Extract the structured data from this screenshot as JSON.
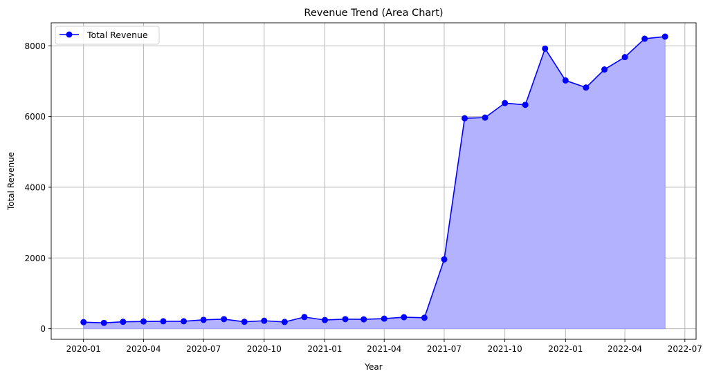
{
  "chart_data": {
    "type": "area",
    "title": "Revenue Trend (Area Chart)",
    "xlabel": "Year",
    "ylabel": "Total Revenue",
    "legend": {
      "placement": "top-left",
      "entries": [
        "Total Revenue"
      ]
    },
    "grid": true,
    "ylim": [
      -300,
      8650
    ],
    "xlim": [
      "2019-11-13",
      "2022-07-18"
    ],
    "x_ticks": [
      "2020-01",
      "2020-04",
      "2020-07",
      "2020-10",
      "2021-01",
      "2021-04",
      "2021-07",
      "2021-10",
      "2022-01",
      "2022-04",
      "2022-07"
    ],
    "y_ticks": [
      0,
      2000,
      4000,
      6000,
      8000
    ],
    "colors": {
      "line": "#0000ff",
      "fill": "#b2b2ff",
      "fill_edge": "#9a9af0",
      "grid": "#b0b0b0"
    },
    "series": [
      {
        "name": "Total Revenue",
        "x": [
          "2020-01-01",
          "2020-02-01",
          "2020-03-01",
          "2020-04-01",
          "2020-05-01",
          "2020-06-01",
          "2020-07-01",
          "2020-08-01",
          "2020-09-01",
          "2020-10-01",
          "2020-11-01",
          "2020-12-01",
          "2021-01-01",
          "2021-02-01",
          "2021-03-01",
          "2021-04-01",
          "2021-05-01",
          "2021-06-01",
          "2021-07-01",
          "2021-08-01",
          "2021-09-01",
          "2021-10-01",
          "2021-11-01",
          "2021-12-01",
          "2022-01-01",
          "2022-02-01",
          "2022-03-01",
          "2022-04-01",
          "2022-05-01",
          "2022-06-01"
        ],
        "values": [
          185,
          165,
          195,
          205,
          210,
          210,
          250,
          270,
          195,
          225,
          190,
          330,
          245,
          270,
          265,
          285,
          325,
          310,
          1960,
          5950,
          5970,
          6380,
          6330,
          7920,
          7020,
          6820,
          7330,
          7680,
          8200,
          8260
        ]
      }
    ]
  }
}
